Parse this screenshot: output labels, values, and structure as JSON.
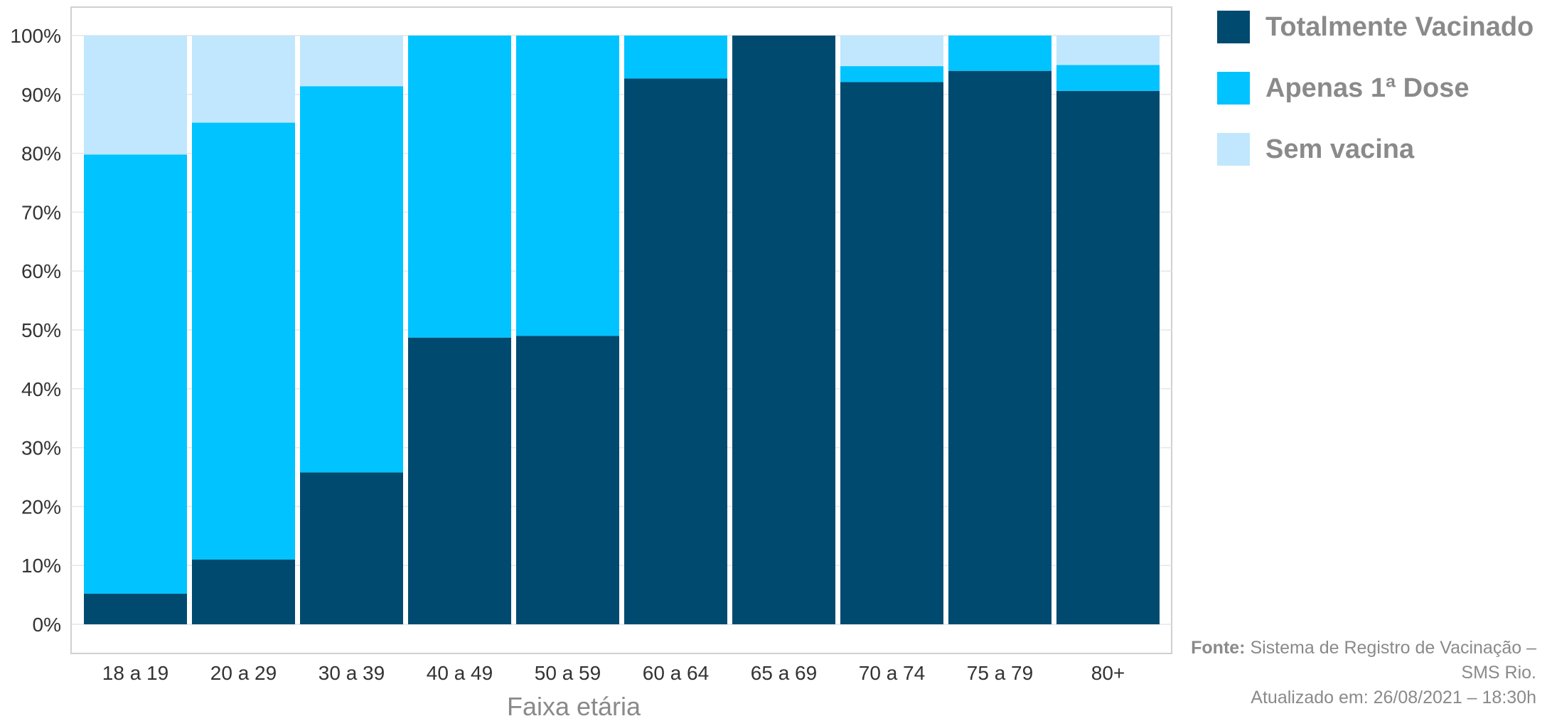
{
  "chart_data": {
    "type": "bar",
    "stacked": true,
    "categories": [
      "18 a 19",
      "20 a 29",
      "30 a 39",
      "40 a 49",
      "50 a 59",
      "60 a 64",
      "65 a 69",
      "70 a 74",
      "75 a 79",
      "80+"
    ],
    "series": [
      {
        "name": "Totalmente Vacinado",
        "color": "#004a70",
        "values": [
          5.2,
          11,
          25.8,
          48.7,
          49,
          92.7,
          100,
          92.1,
          94,
          90.6
        ]
      },
      {
        "name": "Apenas 1ª Dose",
        "color": "#00c3ff",
        "values": [
          74.6,
          74.2,
          65.6,
          51.3,
          51,
          7.3,
          0,
          2.7,
          6,
          4.4
        ]
      },
      {
        "name": "Sem vacina",
        "color": "#c0e7fd",
        "values": [
          20.2,
          14.8,
          8.6,
          0,
          0,
          0,
          0,
          5.2,
          0,
          5
        ]
      }
    ],
    "xlabel": "Faixa etária",
    "ylabel": "",
    "ylim": [
      0,
      100
    ],
    "yticks": [
      "0%",
      "10%",
      "20%",
      "30%",
      "40%",
      "50%",
      "60%",
      "70%",
      "80%",
      "90%",
      "100%"
    ],
    "grid": true,
    "legend_position": "right"
  },
  "legend": {
    "items": [
      {
        "label": "Totalmente Vacinado",
        "color": "#004a70"
      },
      {
        "label": "Apenas 1ª Dose",
        "color": "#00c3ff"
      },
      {
        "label": "Sem vacina",
        "color": "#c0e7fd"
      }
    ]
  },
  "source": {
    "label": "Fonte:",
    "text": "Sistema de Registro de Vacinação – SMS Rio.",
    "updated": "Atualizado em: 26/08/2021 – 18:30h"
  }
}
